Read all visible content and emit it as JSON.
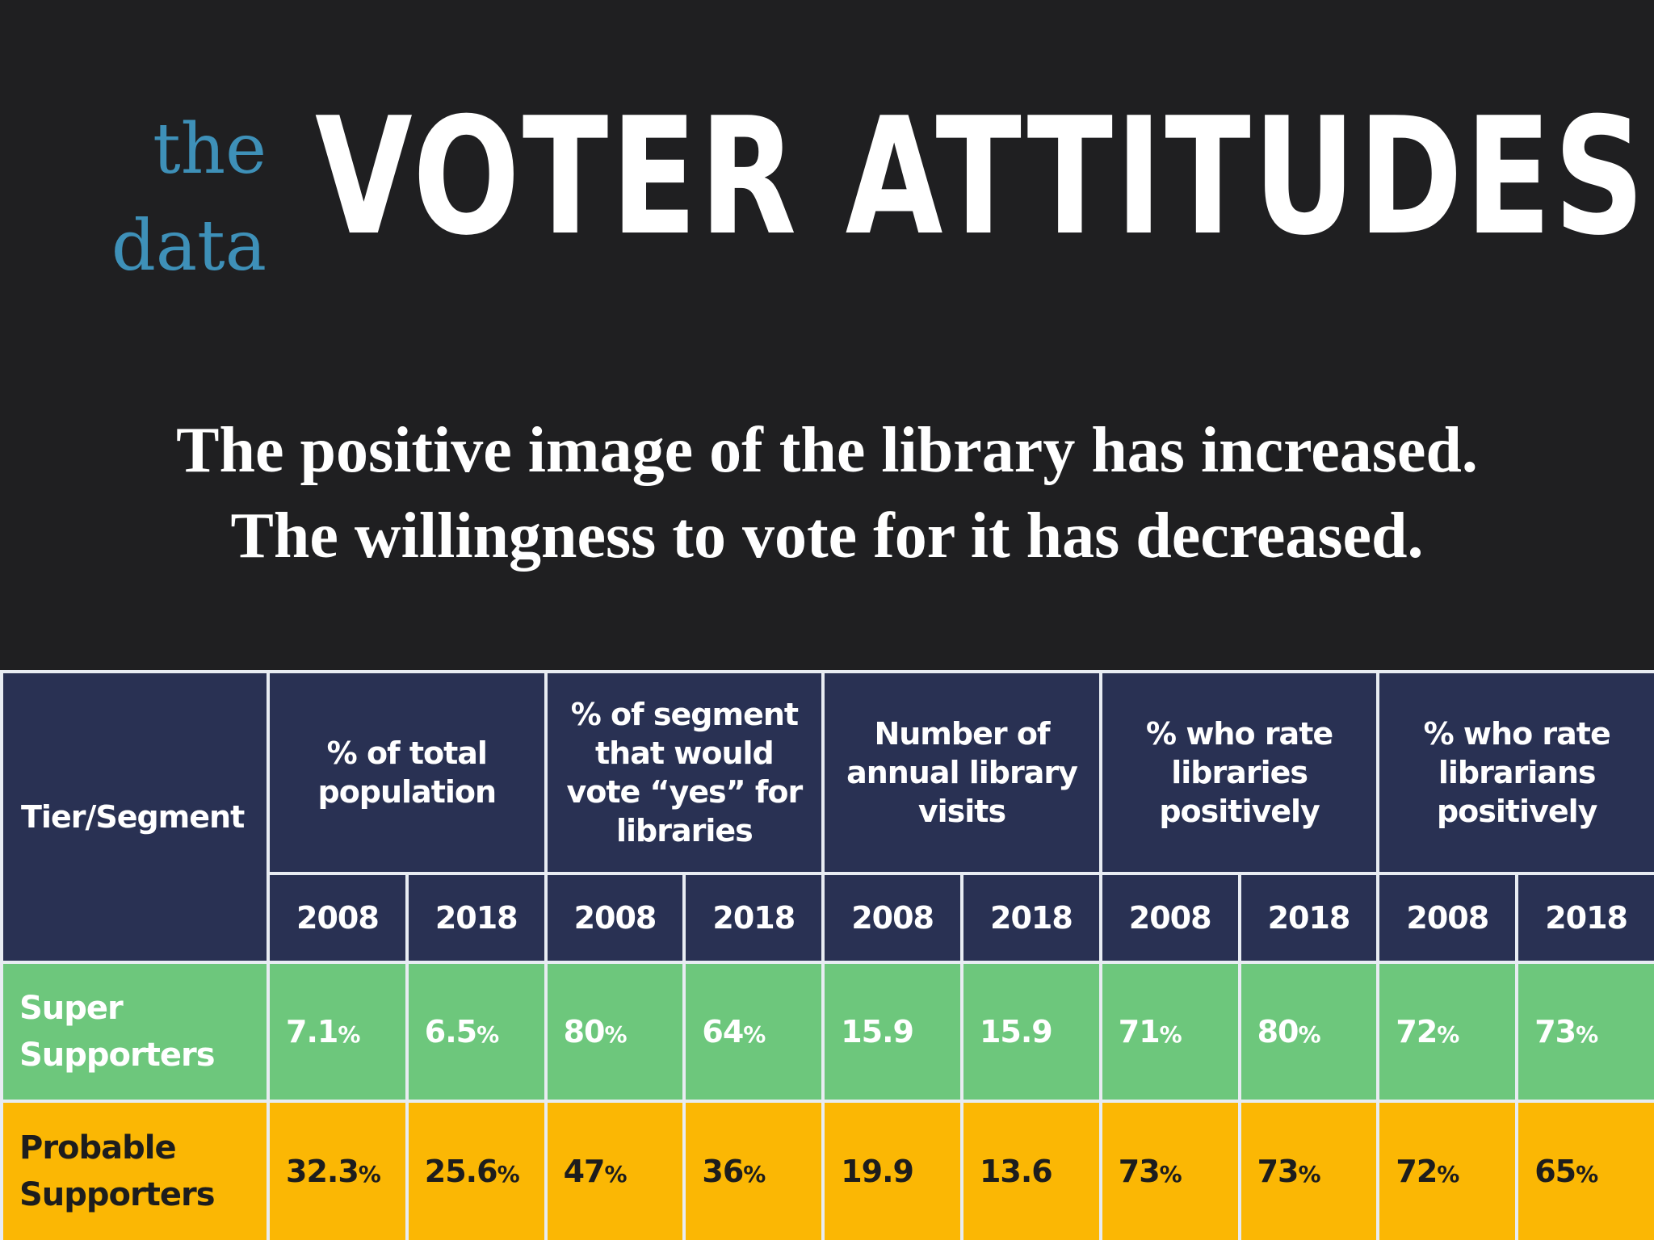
{
  "header": {
    "the": "the",
    "data": "data",
    "title": "VOTER ATTITUDES",
    "subtitle_line1": "The positive image of the library has increased.",
    "subtitle_line2": "The willingness to vote for it has decreased."
  },
  "colors": {
    "background": "#1f1f21",
    "accent_blue": "#3e90b8",
    "header_navy": "#293153",
    "super_green": "#6dc77c",
    "probable_amber": "#fbb704"
  },
  "chart_data": {
    "type": "table",
    "segment_header": "Tier/Segment",
    "groups": [
      "% of total population",
      "% of segment that would vote “yes” for libraries",
      "Number of annual library visits",
      "% who rate libraries positively",
      "% who rate librarians positively"
    ],
    "years": [
      "2008",
      "2018"
    ],
    "rows": [
      {
        "segment_line1": "Super",
        "segment_line2": "Supporters",
        "values": [
          "7.1",
          "6.5",
          "80",
          "64",
          "15.9",
          "15.9",
          "71",
          "80",
          "72",
          "73"
        ],
        "units": [
          "%",
          "%",
          "%",
          "%",
          "",
          "",
          "%",
          "%",
          "%",
          "%"
        ]
      },
      {
        "segment_line1": "Probable",
        "segment_line2": "Supporters",
        "values": [
          "32.3",
          "25.6",
          "47",
          "36",
          "19.9",
          "13.6",
          "73",
          "73",
          "72",
          "65"
        ],
        "units": [
          "%",
          "%",
          "%",
          "%",
          "",
          "",
          "%",
          "%",
          "%",
          "%"
        ]
      }
    ]
  }
}
